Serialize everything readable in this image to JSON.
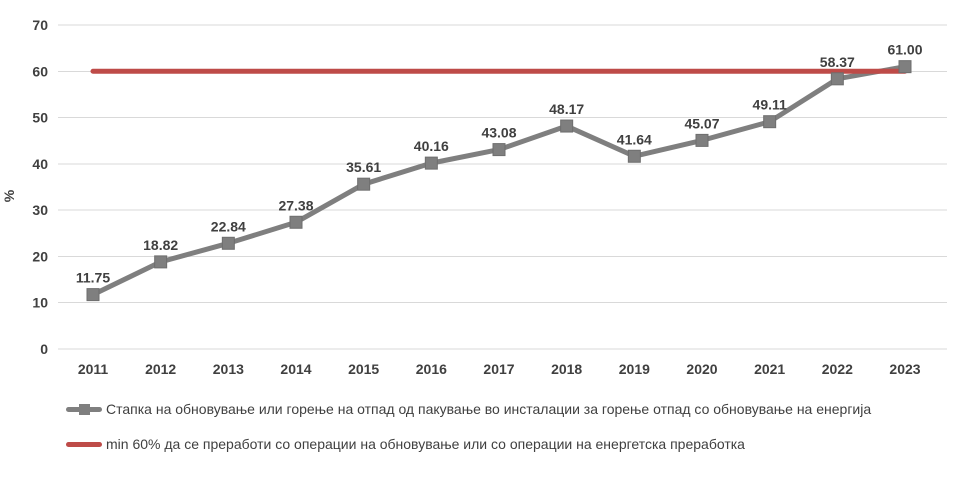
{
  "chart_data": {
    "type": "line",
    "title": "",
    "xlabel": "",
    "ylabel": "%",
    "categories": [
      "2011",
      "2012",
      "2013",
      "2014",
      "2015",
      "2016",
      "2017",
      "2018",
      "2019",
      "2020",
      "2021",
      "2022",
      "2023"
    ],
    "yticks": [
      0,
      10,
      20,
      30,
      40,
      50,
      60,
      70
    ],
    "ylim": [
      0,
      70
    ],
    "grid": true,
    "legend_position": "bottom",
    "series": [
      {
        "name": "Стапка на обновување или горење на отпад од пакување во инсталации за горење отпад со обновување на енергија",
        "color": "#7F7F7F",
        "marker": "square",
        "data_labels": true,
        "values": [
          11.75,
          18.82,
          22.84,
          27.38,
          35.61,
          40.16,
          43.08,
          48.17,
          41.64,
          45.07,
          49.11,
          58.37,
          61.0
        ]
      },
      {
        "name": "min 60% да се преработи со операции на обновување или со операции на енергетска преработка",
        "color": "#BE4B48",
        "marker": "none",
        "data_labels": false,
        "values": [
          60,
          60,
          60,
          60,
          60,
          60,
          60,
          60,
          60,
          60,
          60,
          60,
          60
        ]
      }
    ],
    "colors": {
      "gridline": "#D9D9D9",
      "axis_text": "#404040",
      "data_label_text": "#404040",
      "background": "#FFFFFF"
    }
  }
}
